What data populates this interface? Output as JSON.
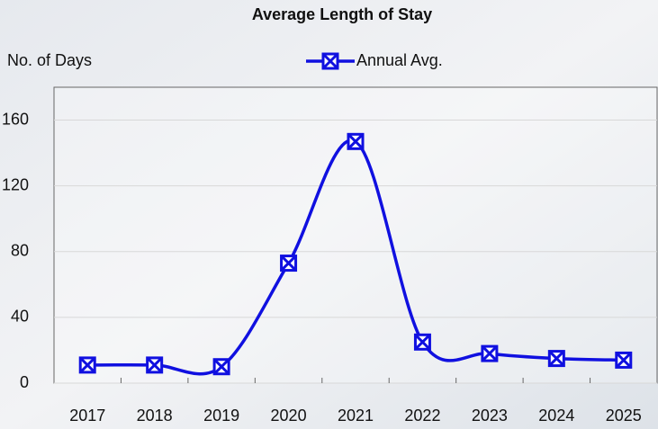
{
  "chart_data": {
    "type": "line",
    "title": "Average Length of Stay",
    "y_label": "No. of Days",
    "categories": [
      "2017",
      "2018",
      "2019",
      "2020",
      "2021",
      "2022",
      "2023",
      "2024",
      "2025"
    ],
    "series": [
      {
        "name": "Annual Avg.",
        "color": "#1010e0",
        "values": [
          11,
          11,
          10,
          73,
          147,
          25,
          18,
          15,
          14
        ]
      }
    ],
    "ylim": [
      0,
      180
    ],
    "yticks": [
      0,
      40,
      80,
      120,
      160
    ],
    "grid": true,
    "smooth": true,
    "legend": "top"
  }
}
